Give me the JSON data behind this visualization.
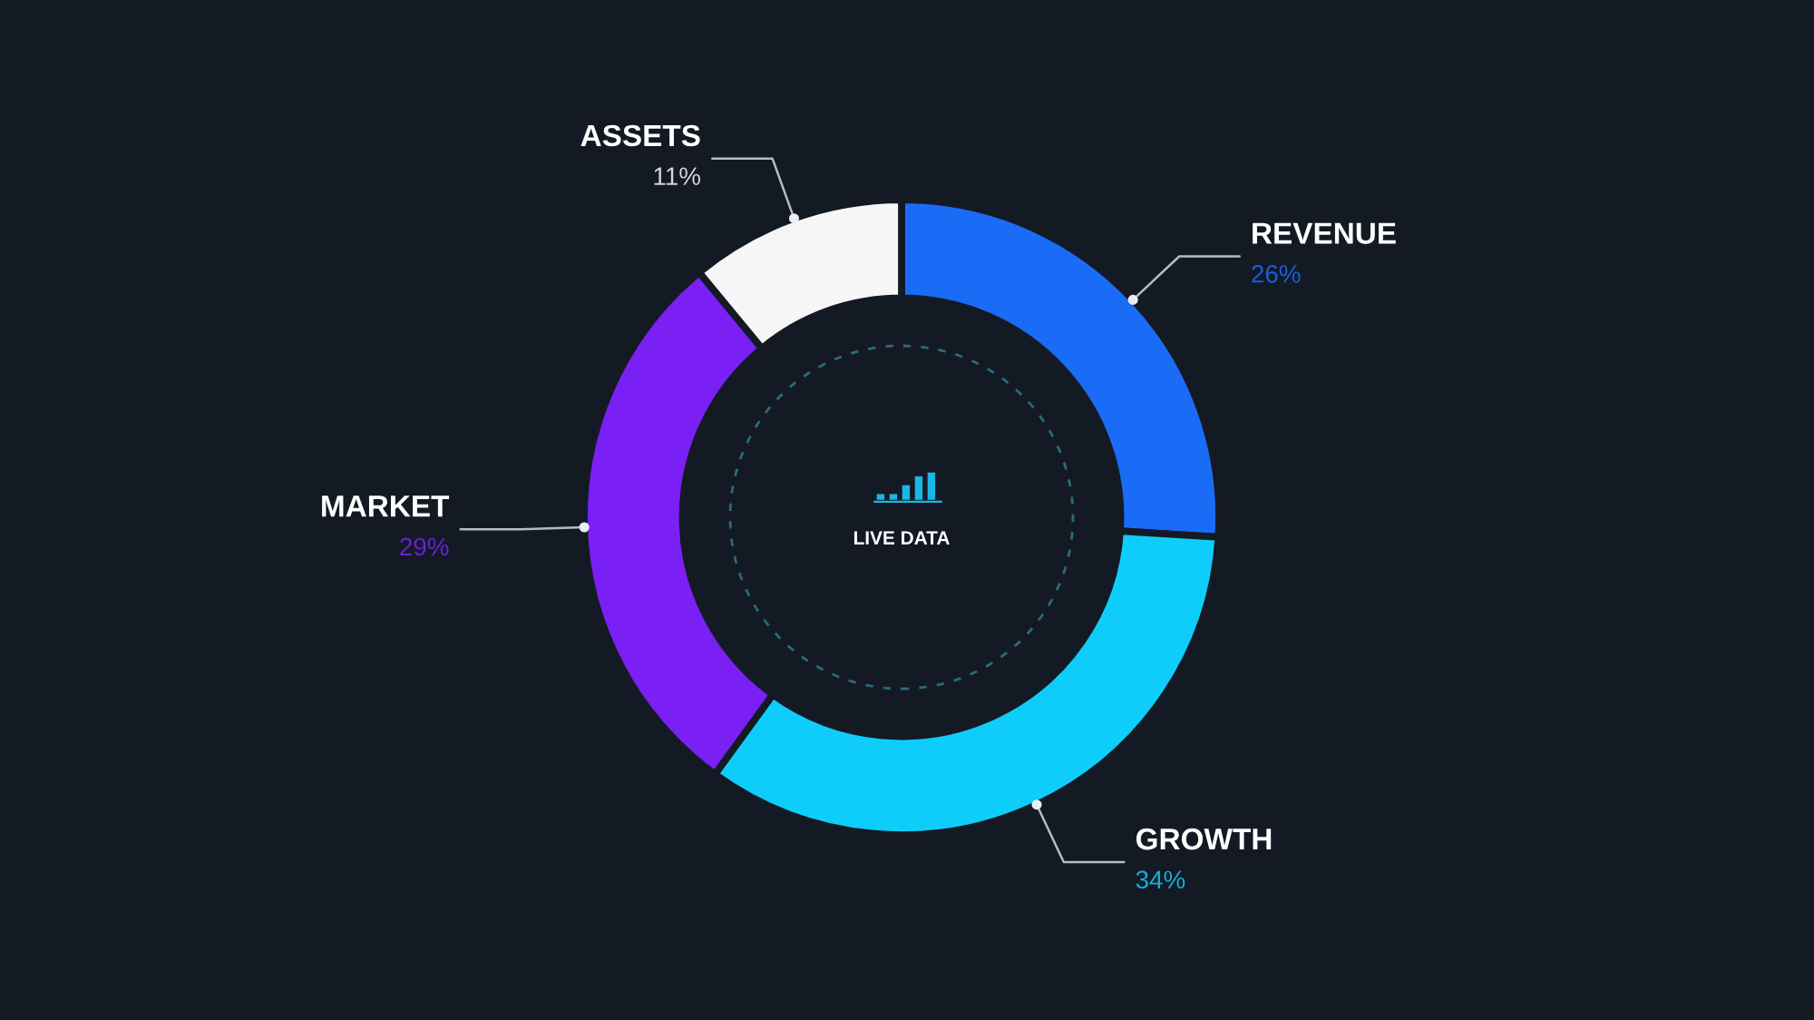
{
  "chart_data": {
    "type": "donut",
    "categories": [
      "REVENUE",
      "GROWTH",
      "MARKET",
      "ASSETS"
    ],
    "values": [
      26,
      34,
      29,
      11
    ],
    "colors": [
      "#1a6cf6",
      "#0fcdfb",
      "#7a20f5",
      "#f6f6f6"
    ],
    "value_labels": [
      "26%",
      "34%",
      "29%",
      "11%"
    ],
    "annotations": [
      "LIVE DATA"
    ]
  }
}
